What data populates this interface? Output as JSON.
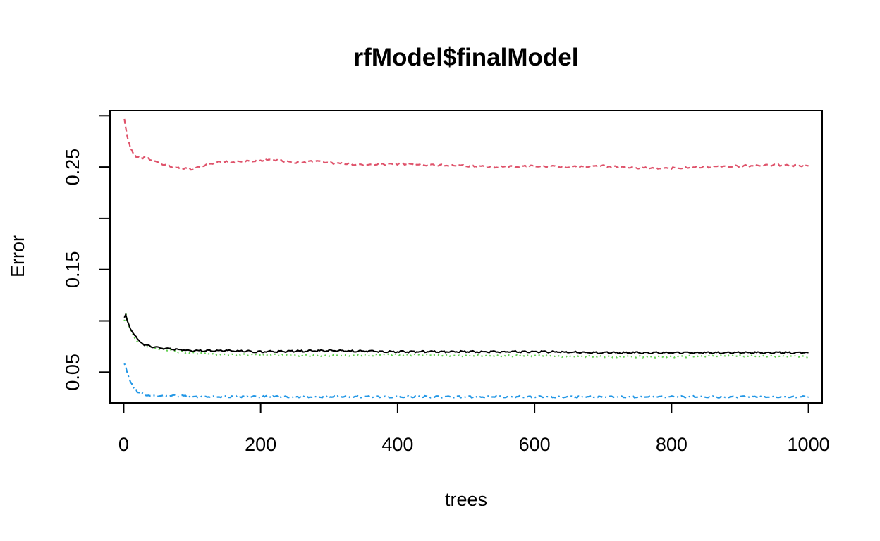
{
  "chart_data": {
    "type": "line",
    "title": "rfModel$finalModel",
    "xlabel": "trees",
    "ylabel": "Error",
    "xlim": [
      -20,
      1020
    ],
    "ylim": [
      0.02,
      0.305
    ],
    "x_ticks": [
      {
        "value": 0,
        "label": "0"
      },
      {
        "value": 200,
        "label": "200"
      },
      {
        "value": 400,
        "label": "400"
      },
      {
        "value": 600,
        "label": "600"
      },
      {
        "value": 800,
        "label": "800"
      },
      {
        "value": 1000,
        "label": "1000"
      }
    ],
    "y_ticks_all": [
      0.05,
      0.1,
      0.15,
      0.2,
      0.25,
      0.3
    ],
    "y_ticks_labeled": [
      {
        "value": 0.05,
        "label": "0.05"
      },
      {
        "value": 0.15,
        "label": "0.15"
      },
      {
        "value": 0.25,
        "label": "0.25"
      }
    ],
    "grid": false,
    "legend": "none",
    "series": [
      {
        "color": "#DF536B",
        "dash": "dashed",
        "x": [
          1,
          5,
          10,
          15,
          20,
          30,
          40,
          60,
          80,
          100,
          120,
          140,
          160,
          200,
          220,
          250,
          280,
          300,
          350,
          400,
          450,
          500,
          550,
          600,
          650,
          700,
          750,
          800,
          850,
          900,
          950,
          1000
        ],
        "y": [
          0.296,
          0.28,
          0.268,
          0.262,
          0.259,
          0.259,
          0.257,
          0.252,
          0.249,
          0.248,
          0.252,
          0.255,
          0.255,
          0.256,
          0.257,
          0.254,
          0.256,
          0.254,
          0.252,
          0.253,
          0.252,
          0.251,
          0.25,
          0.251,
          0.25,
          0.251,
          0.249,
          0.249,
          0.25,
          0.251,
          0.252,
          0.251
        ]
      },
      {
        "color": "#61D04F",
        "dash": "dotted",
        "x": [
          1,
          3,
          5,
          8,
          12,
          20,
          30,
          40,
          60,
          80,
          100,
          150,
          200,
          300,
          400,
          500,
          600,
          700,
          800,
          900,
          1000
        ],
        "y": [
          0.1,
          0.108,
          0.102,
          0.095,
          0.088,
          0.08,
          0.076,
          0.074,
          0.072,
          0.07,
          0.069,
          0.067,
          0.067,
          0.066,
          0.067,
          0.066,
          0.066,
          0.065,
          0.065,
          0.066,
          0.065
        ]
      },
      {
        "color": "#000000",
        "dash": "solid",
        "x": [
          1,
          3,
          5,
          8,
          12,
          20,
          30,
          40,
          60,
          80,
          100,
          150,
          200,
          300,
          400,
          500,
          600,
          700,
          800,
          900,
          1000
        ],
        "y": [
          0.104,
          0.106,
          0.1,
          0.095,
          0.09,
          0.082,
          0.077,
          0.075,
          0.073,
          0.072,
          0.071,
          0.071,
          0.07,
          0.071,
          0.07,
          0.07,
          0.07,
          0.069,
          0.069,
          0.069,
          0.069
        ]
      },
      {
        "color": "#2297E6",
        "dash": "dashdot",
        "x": [
          1,
          3,
          6,
          10,
          15,
          20,
          30,
          40,
          60,
          80,
          100,
          150,
          200,
          300,
          400,
          500,
          600,
          700,
          800,
          900,
          1000
        ],
        "y": [
          0.058,
          0.055,
          0.048,
          0.04,
          0.034,
          0.031,
          0.028,
          0.027,
          0.027,
          0.027,
          0.026,
          0.026,
          0.026,
          0.026,
          0.026,
          0.026,
          0.026,
          0.026,
          0.026,
          0.026,
          0.026
        ]
      }
    ]
  }
}
